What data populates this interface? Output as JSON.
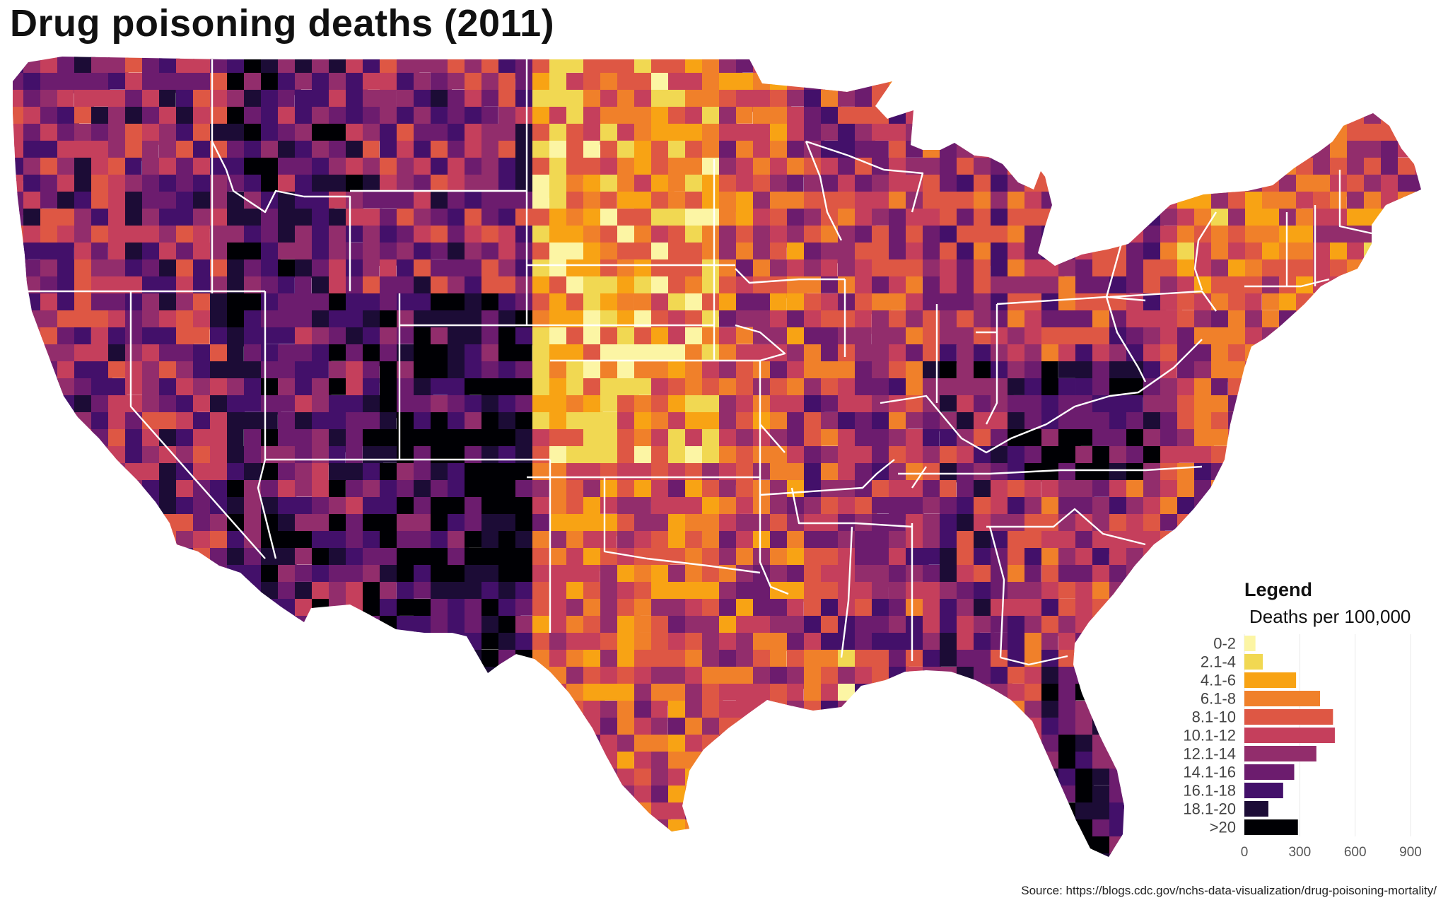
{
  "title": "Drug poisoning deaths (2011)",
  "legend": {
    "title": "Legend",
    "subtitle": "Deaths per 100,000",
    "axis_ticks": [
      "0",
      "300",
      "600",
      "900"
    ],
    "axis_range": [
      0,
      900
    ]
  },
  "source": "Source: https://blogs.cdc.gov/nchs-data-visualization/drug-poisoning-mortality/",
  "chart_data": {
    "type": "bar",
    "orientation": "horizontal",
    "xlim": [
      0,
      900
    ],
    "categories": [
      "0-2",
      "2.1-4",
      "4.1-6",
      "6.1-8",
      "8.1-10",
      "10.1-12",
      "12.1-14",
      "14.1-16",
      "16.1-18",
      "18.1-20",
      ">20"
    ],
    "values": [
      60,
      100,
      280,
      410,
      480,
      490,
      390,
      270,
      210,
      130,
      290
    ],
    "colors": [
      "#fcf5a4",
      "#f1d852",
      "#f8a314",
      "#f0802a",
      "#de5744",
      "#c53f5c",
      "#922d6c",
      "#6c1c6e",
      "#43106a",
      "#1c0c36",
      "#000004"
    ]
  },
  "map": {
    "background": "#ffffff",
    "state_border_color": "#ffffff",
    "palette": [
      "#fcf5a4",
      "#f1d852",
      "#f8a314",
      "#f0802a",
      "#de5744",
      "#c53f5c",
      "#922d6c",
      "#6c1c6e",
      "#43106a",
      "#1c0c36",
      "#000004"
    ]
  }
}
